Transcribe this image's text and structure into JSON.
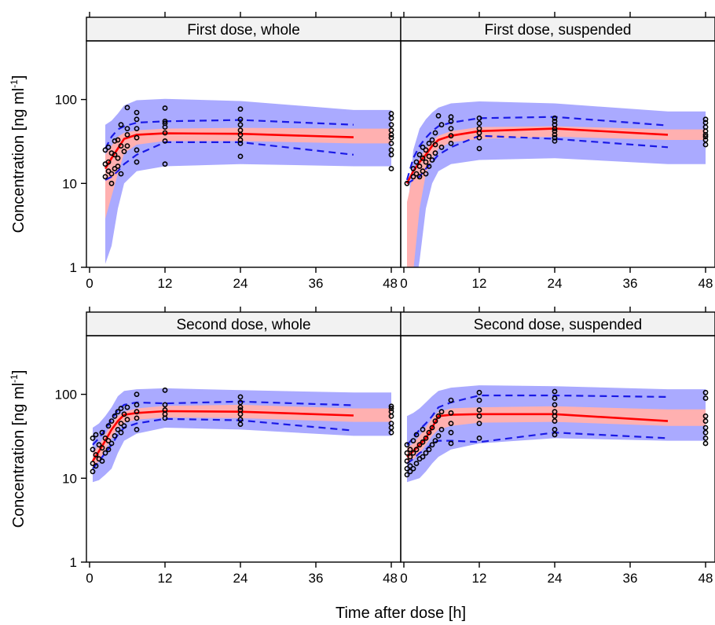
{
  "figure": {
    "xlabel": "Time after dose [h]",
    "ylabel_main": "Concentration [ng ml",
    "ylabel_sup": "-1",
    "ylabel_close": "]"
  },
  "colors": {
    "pi_band": "#aaaaff",
    "median_band": "#ffb0b0",
    "overlap_band": "#b07ab8",
    "median_line": "#ff0000",
    "percentile_line": "#1a1ae6",
    "observed_point": "#000000",
    "strip_fill": "#f2f2f2"
  },
  "chart_data": [
    {
      "type": "line",
      "title": "First dose, whole",
      "x_ticks": [
        0,
        12,
        24,
        36,
        48
      ],
      "x_tick_labels": [
        "0",
        "12",
        "24",
        "36",
        "48"
      ],
      "y_ticks": [
        1,
        10,
        100
      ],
      "y_tick_labels": [
        "1",
        "10",
        "100"
      ],
      "xlim": [
        -0.5,
        49.5
      ],
      "ylim": [
        1,
        500
      ],
      "y_scale": "log",
      "bands": {
        "x": [
          2.5,
          3.5,
          4.5,
          5.5,
          7.5,
          12,
          24,
          42,
          48
        ],
        "outer_lo": [
          1.1,
          1.8,
          5,
          10,
          14,
          16,
          17,
          16,
          16
        ],
        "outer_hi": [
          50,
          56,
          68,
          85,
          98,
          102,
          96,
          75,
          75
        ],
        "median_lo": [
          3.8,
          7,
          13,
          23,
          29,
          32,
          32,
          30,
          30
        ],
        "median_hi": [
          22,
          28,
          36,
          40,
          43,
          45,
          46,
          45,
          45
        ]
      },
      "percentile_lines": {
        "x": [
          2.5,
          3.5,
          4.5,
          5.5,
          7.5,
          12,
          24,
          42
        ],
        "upper": [
          26,
          36,
          44,
          48,
          53,
          55,
          57,
          50
        ],
        "median": [
          15,
          20,
          26,
          34,
          38,
          39.5,
          39,
          35.5
        ],
        "lower": [
          11,
          12,
          14,
          17,
          22,
          31,
          31,
          22
        ]
      },
      "observed": {
        "x": [
          2.5,
          2.5,
          2.5,
          3,
          3,
          3,
          3.5,
          3.5,
          3.5,
          4,
          4,
          4,
          4.5,
          4.5,
          4.5,
          5,
          5,
          5,
          5.5,
          6,
          6,
          6,
          6,
          7.5,
          7.5,
          7.5,
          7.5,
          7.5,
          7.5,
          12,
          12,
          12,
          12,
          12,
          12,
          12,
          24,
          24,
          24,
          24,
          24,
          24,
          24,
          24,
          48,
          48,
          48,
          48,
          48,
          48,
          48,
          48,
          48,
          48
        ],
        "y": [
          12,
          17,
          25,
          14,
          18,
          27,
          10,
          13,
          23,
          15,
          22,
          32,
          16,
          20,
          33,
          13,
          28,
          50,
          24,
          28,
          38,
          45,
          80,
          18,
          25,
          35,
          45,
          58,
          70,
          17,
          32,
          40,
          47,
          52,
          55,
          79,
          21,
          30,
          33,
          38,
          43,
          50,
          58,
          77,
          15,
          22,
          25,
          30,
          35,
          38,
          43,
          50,
          60,
          68
        ]
      }
    },
    {
      "type": "line",
      "title": "First dose, suspended",
      "x_ticks": [
        0,
        12,
        24,
        36,
        48
      ],
      "x_tick_labels": [
        "0",
        "12",
        "24",
        "36",
        "48"
      ],
      "y_ticks": [
        1,
        10,
        100
      ],
      "y_tick_labels": [
        "1",
        "10",
        "100"
      ],
      "xlim": [
        -0.5,
        49.5
      ],
      "ylim": [
        1,
        500
      ],
      "y_scale": "log",
      "bands": {
        "x": [
          0.5,
          1.5,
          2.5,
          3.5,
          4.5,
          5.5,
          7.5,
          12,
          24,
          42,
          48
        ],
        "outer_lo": [
          0.4,
          0.4,
          1.2,
          5,
          10,
          14,
          17,
          19,
          20,
          17,
          17
        ],
        "outer_hi": [
          4,
          25,
          45,
          58,
          70,
          80,
          90,
          95,
          90,
          72,
          72
        ],
        "median_lo": [
          0.3,
          0.9,
          5,
          13,
          20,
          26,
          31,
          34,
          36,
          33,
          33
        ],
        "median_hi": [
          6,
          13,
          20,
          26,
          32,
          37,
          42,
          47,
          48,
          44,
          44
        ]
      },
      "percentile_lines": {
        "x": [
          0.5,
          1.5,
          2.5,
          3.5,
          4.5,
          5.5,
          7.5,
          12,
          24,
          42
        ],
        "upper": [
          11,
          20,
          28,
          35,
          42,
          48,
          53,
          60,
          62,
          49
        ],
        "median": [
          10,
          14,
          18,
          22,
          28,
          33,
          37,
          42,
          45,
          38
        ],
        "lower": [
          10,
          11,
          12,
          15,
          18,
          22,
          27,
          37,
          34,
          27
        ]
      },
      "observed": {
        "x": [
          0.5,
          1.5,
          1.5,
          2,
          2,
          2.5,
          2.5,
          2.5,
          3,
          3,
          3,
          3.5,
          3.5,
          3.5,
          4,
          4,
          4,
          4.5,
          4.5,
          5,
          5,
          5,
          5.5,
          6,
          6,
          7.5,
          7.5,
          7.5,
          7.5,
          7.5,
          12,
          12,
          12,
          12,
          12,
          12,
          24,
          24,
          24,
          24,
          24,
          24,
          24,
          24,
          48,
          48,
          48,
          48,
          48,
          48,
          48,
          48
        ],
        "y": [
          10,
          12,
          15,
          13,
          18,
          12,
          16,
          22,
          14,
          20,
          27,
          13,
          18,
          25,
          16,
          21,
          30,
          19,
          33,
          23,
          29,
          40,
          64,
          27,
          50,
          30,
          37,
          45,
          55,
          62,
          26,
          35,
          40,
          45,
          52,
          60,
          32,
          35,
          38,
          42,
          45,
          50,
          55,
          60,
          29,
          33,
          36,
          38,
          42,
          47,
          53,
          58
        ]
      }
    },
    {
      "type": "line",
      "title": "Second dose, whole",
      "x_ticks": [
        0,
        12,
        24,
        36,
        48
      ],
      "x_tick_labels": [
        "0",
        "12",
        "24",
        "36",
        "48"
      ],
      "y_ticks": [
        1,
        10,
        100
      ],
      "y_tick_labels": [
        "1",
        "10",
        "100"
      ],
      "xlim": [
        -0.5,
        49.5
      ],
      "ylim": [
        1,
        500
      ],
      "y_scale": "log",
      "bands": {
        "x": [
          0.5,
          1.5,
          2.5,
          3.5,
          4.5,
          5.5,
          7.5,
          12,
          24,
          42,
          48
        ],
        "outer_lo": [
          9,
          9.5,
          11,
          13,
          20,
          28,
          34,
          40,
          38,
          32,
          32
        ],
        "outer_hi": [
          40,
          45,
          55,
          70,
          95,
          110,
          115,
          118,
          112,
          105,
          105
        ],
        "median_lo": [
          13,
          16,
          22,
          30,
          40,
          46,
          50,
          53,
          52,
          47,
          47
        ],
        "median_hi": [
          20,
          25,
          33,
          45,
          55,
          62,
          68,
          73,
          75,
          68,
          68
        ]
      },
      "percentile_lines": {
        "x": [
          0.5,
          1.5,
          2.5,
          3.5,
          4.5,
          5.5,
          7.5,
          12,
          24,
          42
        ],
        "upper": [
          25,
          30,
          38,
          50,
          65,
          75,
          80,
          78,
          82,
          74
        ],
        "median": [
          16,
          21,
          28,
          38,
          48,
          57,
          60,
          63,
          62,
          56
        ],
        "lower": [
          13,
          16,
          20,
          25,
          33,
          40,
          45,
          51,
          49,
          37
        ]
      },
      "observed": {
        "x": [
          0.5,
          0.5,
          0.5,
          0.5,
          1,
          1,
          1,
          1.5,
          1.5,
          2,
          2,
          2,
          2.5,
          2.5,
          3,
          3,
          3,
          3.5,
          3.5,
          4,
          4,
          4.5,
          4.5,
          5,
          5,
          5,
          5.5,
          5.5,
          6,
          6,
          7.5,
          7.5,
          7.5,
          7.5,
          7.5,
          12,
          12,
          12,
          12,
          12,
          24,
          24,
          24,
          24,
          24,
          24,
          24,
          48,
          48,
          48,
          48,
          48,
          48,
          48
        ],
        "y": [
          12,
          15,
          22,
          30,
          14,
          19,
          33,
          17,
          25,
          16,
          23,
          35,
          20,
          30,
          22,
          28,
          42,
          26,
          48,
          32,
          55,
          38,
          62,
          35,
          45,
          68,
          42,
          58,
          50,
          70,
          38,
          52,
          62,
          75,
          100,
          52,
          58,
          65,
          75,
          112,
          44,
          50,
          58,
          65,
          70,
          80,
          93,
          35,
          40,
          45,
          55,
          62,
          68,
          72
        ]
      }
    },
    {
      "type": "line",
      "title": "Second dose, suspended",
      "x_ticks": [
        0,
        12,
        24,
        36,
        48
      ],
      "x_tick_labels": [
        "0",
        "12",
        "24",
        "36",
        "48"
      ],
      "y_ticks": [
        1,
        10,
        100
      ],
      "y_tick_labels": [
        "1",
        "10",
        "100"
      ],
      "xlim": [
        -0.5,
        49.5
      ],
      "ylim": [
        1,
        500
      ],
      "y_scale": "log",
      "bands": {
        "x": [
          0.5,
          1.5,
          2.5,
          3.5,
          4.5,
          5.5,
          7.5,
          12,
          24,
          42,
          48
        ],
        "outer_lo": [
          9,
          9.5,
          10,
          12,
          15,
          18,
          22,
          26,
          30,
          28,
          28
        ],
        "outer_hi": [
          55,
          60,
          68,
          80,
          95,
          110,
          120,
          128,
          125,
          115,
          115
        ],
        "median_lo": [
          15,
          17,
          20,
          25,
          32,
          38,
          42,
          46,
          47,
          42,
          42
        ],
        "median_hi": [
          23,
          26,
          32,
          40,
          52,
          62,
          68,
          70,
          72,
          66,
          66
        ]
      },
      "percentile_lines": {
        "x": [
          0.5,
          1.5,
          2.5,
          3.5,
          4.5,
          5.5,
          7.5,
          12,
          24,
          42
        ],
        "upper": [
          25,
          30,
          38,
          45,
          55,
          70,
          80,
          97,
          97,
          93
        ],
        "median": [
          18,
          21,
          25,
          30,
          40,
          55,
          57,
          58,
          58,
          48
        ],
        "lower": [
          15,
          17,
          20,
          22,
          26,
          28,
          28,
          27,
          35,
          30
        ]
      },
      "observed": {
        "x": [
          0.5,
          0.5,
          0.5,
          0.5,
          0.5,
          1,
          1,
          1,
          1,
          1.5,
          1.5,
          1.5,
          2,
          2,
          2,
          2.5,
          2.5,
          3,
          3,
          3,
          3.5,
          3.5,
          4,
          4,
          4.5,
          4.5,
          5,
          5,
          5.5,
          5.5,
          6,
          6,
          7.5,
          7.5,
          7.5,
          7.5,
          7.5,
          12,
          12,
          12,
          12,
          12,
          12,
          24,
          24,
          24,
          24,
          24,
          24,
          24,
          24,
          48,
          48,
          48,
          48,
          48,
          48,
          48,
          48
        ],
        "y": [
          11,
          13,
          16,
          20,
          25,
          12,
          14,
          18,
          22,
          13,
          20,
          28,
          15,
          22,
          33,
          17,
          25,
          18,
          27,
          38,
          20,
          30,
          22,
          35,
          25,
          40,
          28,
          48,
          32,
          55,
          38,
          62,
          26,
          35,
          45,
          60,
          85,
          30,
          45,
          55,
          65,
          85,
          105,
          33,
          38,
          48,
          55,
          62,
          75,
          90,
          108,
          26,
          30,
          35,
          40,
          48,
          55,
          90,
          105
        ]
      }
    }
  ]
}
